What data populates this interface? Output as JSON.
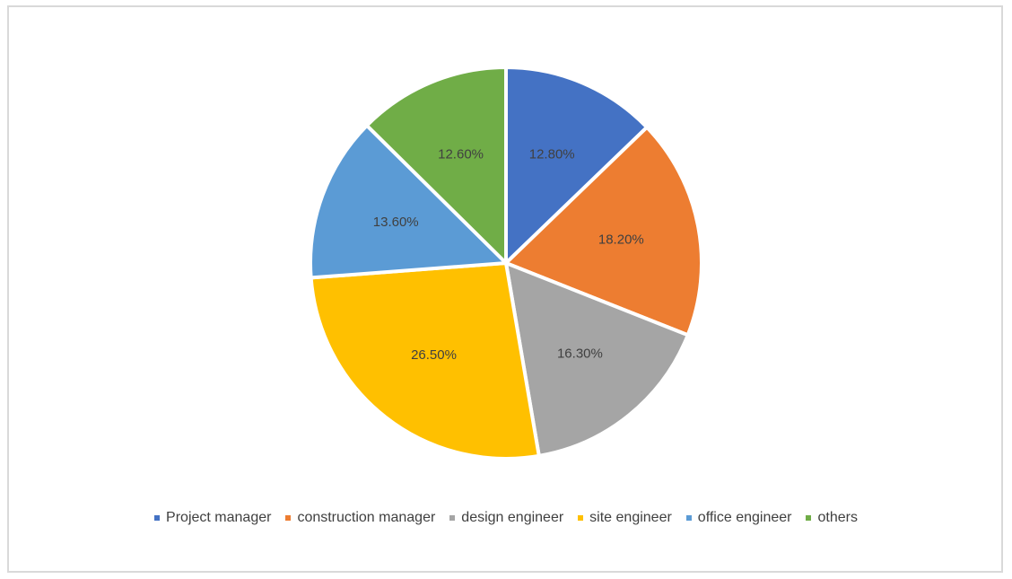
{
  "chart_data": {
    "type": "pie",
    "title": "",
    "categories": [
      "Project manager",
      "construction manager",
      "design engineer",
      "site engineer",
      "office engineer",
      "others"
    ],
    "values": [
      12.8,
      18.2,
      16.3,
      26.5,
      13.6,
      12.6
    ],
    "labels": [
      "12.80%",
      "18.20%",
      "16.30%",
      "26.50%",
      "13.60%",
      "12.60%"
    ],
    "colors": [
      "#4472C4",
      "#ED7D31",
      "#A5A5A5",
      "#FFC000",
      "#5B9BD5",
      "#70AD47"
    ],
    "start_angle_deg": 0,
    "direction": "clockwise",
    "legend_position": "bottom"
  },
  "legend": {
    "items": [
      {
        "label": "Project manager",
        "color": "#4472C4"
      },
      {
        "label": "construction manager",
        "color": "#ED7D31"
      },
      {
        "label": "design engineer",
        "color": "#A5A5A5"
      },
      {
        "label": "site engineer",
        "color": "#FFC000"
      },
      {
        "label": "office engineer",
        "color": "#5B9BD5"
      },
      {
        "label": "others",
        "color": "#70AD47"
      }
    ]
  }
}
